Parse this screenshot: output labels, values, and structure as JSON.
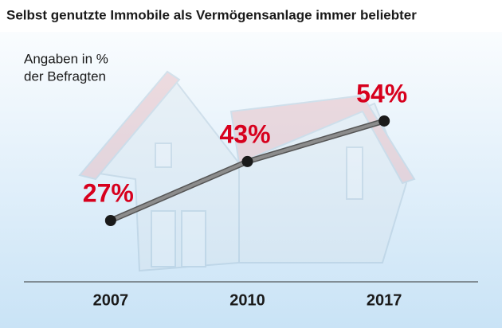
{
  "chart_data": {
    "type": "line",
    "title": "Selbst genutzte Immobile als Vermögensanlage immer beliebter",
    "subtitle": [
      "Angaben in %",
      "der Befragten"
    ],
    "categories": [
      "2007",
      "2010",
      "2017"
    ],
    "values": [
      27,
      43,
      54
    ],
    "value_labels": [
      "27%",
      "43%",
      "54%"
    ],
    "color": "#8c8c8c",
    "label_color": "#d7001d"
  }
}
